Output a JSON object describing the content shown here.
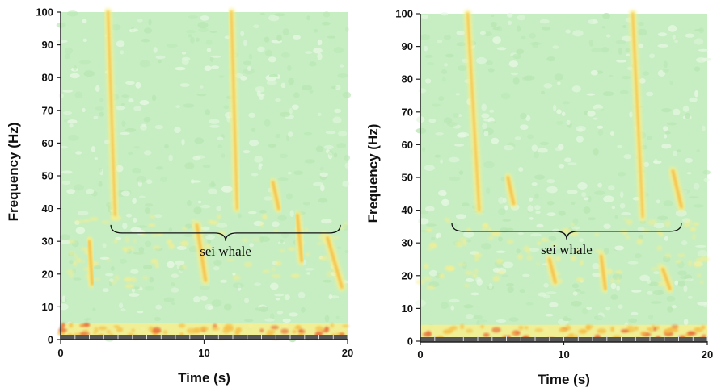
{
  "chart_data": [
    {
      "type": "heatmap",
      "title": "",
      "xlabel": "Time (s)",
      "ylabel": "Frequency (Hz)",
      "xlim": [
        0,
        20
      ],
      "ylim": [
        0,
        100
      ],
      "x_ticks": [
        0,
        10,
        20
      ],
      "y_ticks": [
        0,
        10,
        20,
        30,
        40,
        50,
        60,
        70,
        80,
        90,
        100
      ],
      "colormap": [
        "#c6eec2",
        "#f7ef8e",
        "#f5c04a",
        "#e8703a"
      ],
      "annotation": {
        "text": "sei whale",
        "x_range": [
          3.5,
          19.5
        ],
        "y": 35
      },
      "features": [
        {
          "kind": "downsweep",
          "t_start": 3.3,
          "t_end": 3.8,
          "f_start": 100,
          "f_end": 38
        },
        {
          "kind": "downsweep",
          "t_start": 11.9,
          "t_end": 12.3,
          "f_start": 100,
          "f_end": 40
        },
        {
          "kind": "call",
          "t_start": 2.0,
          "t_end": 2.2,
          "f_start": 30,
          "f_end": 17
        },
        {
          "kind": "call",
          "t_start": 9.5,
          "t_end": 10.1,
          "f_start": 35,
          "f_end": 18
        },
        {
          "kind": "call",
          "t_start": 16.5,
          "t_end": 16.8,
          "f_start": 38,
          "f_end": 24
        },
        {
          "kind": "call",
          "t_start": 18.6,
          "t_end": 19.6,
          "f_start": 31,
          "f_end": 16
        },
        {
          "kind": "call",
          "t_start": 14.8,
          "t_end": 15.2,
          "f_start": 48,
          "f_end": 40
        }
      ]
    },
    {
      "type": "heatmap",
      "title": "",
      "xlabel": "Time (s)",
      "ylabel": "Frequency (Hz)",
      "xlim": [
        0,
        20
      ],
      "ylim": [
        0,
        100
      ],
      "x_ticks": [
        0,
        10,
        20
      ],
      "y_ticks": [
        0,
        10,
        20,
        30,
        40,
        50,
        60,
        70,
        80,
        90,
        100
      ],
      "colormap": [
        "#c6eec2",
        "#f7ef8e",
        "#f5c04a",
        "#e8703a"
      ],
      "annotation": {
        "text": "sei whale",
        "x_range": [
          2.2,
          18.2
        ],
        "y": 36
      },
      "features": [
        {
          "kind": "downsweep",
          "t_start": 3.3,
          "t_end": 4.1,
          "f_start": 100,
          "f_end": 40
        },
        {
          "kind": "downsweep",
          "t_start": 14.8,
          "t_end": 15.5,
          "f_start": 100,
          "f_end": 38
        },
        {
          "kind": "call",
          "t_start": 6.1,
          "t_end": 6.5,
          "f_start": 50,
          "f_end": 42
        },
        {
          "kind": "call",
          "t_start": 17.6,
          "t_end": 18.2,
          "f_start": 52,
          "f_end": 41
        },
        {
          "kind": "call",
          "t_start": 12.6,
          "t_end": 12.9,
          "f_start": 26,
          "f_end": 16
        },
        {
          "kind": "call",
          "t_start": 9.0,
          "t_end": 9.4,
          "f_start": 25,
          "f_end": 18
        },
        {
          "kind": "call",
          "t_start": 16.9,
          "t_end": 17.4,
          "f_start": 22,
          "f_end": 16
        }
      ]
    }
  ]
}
